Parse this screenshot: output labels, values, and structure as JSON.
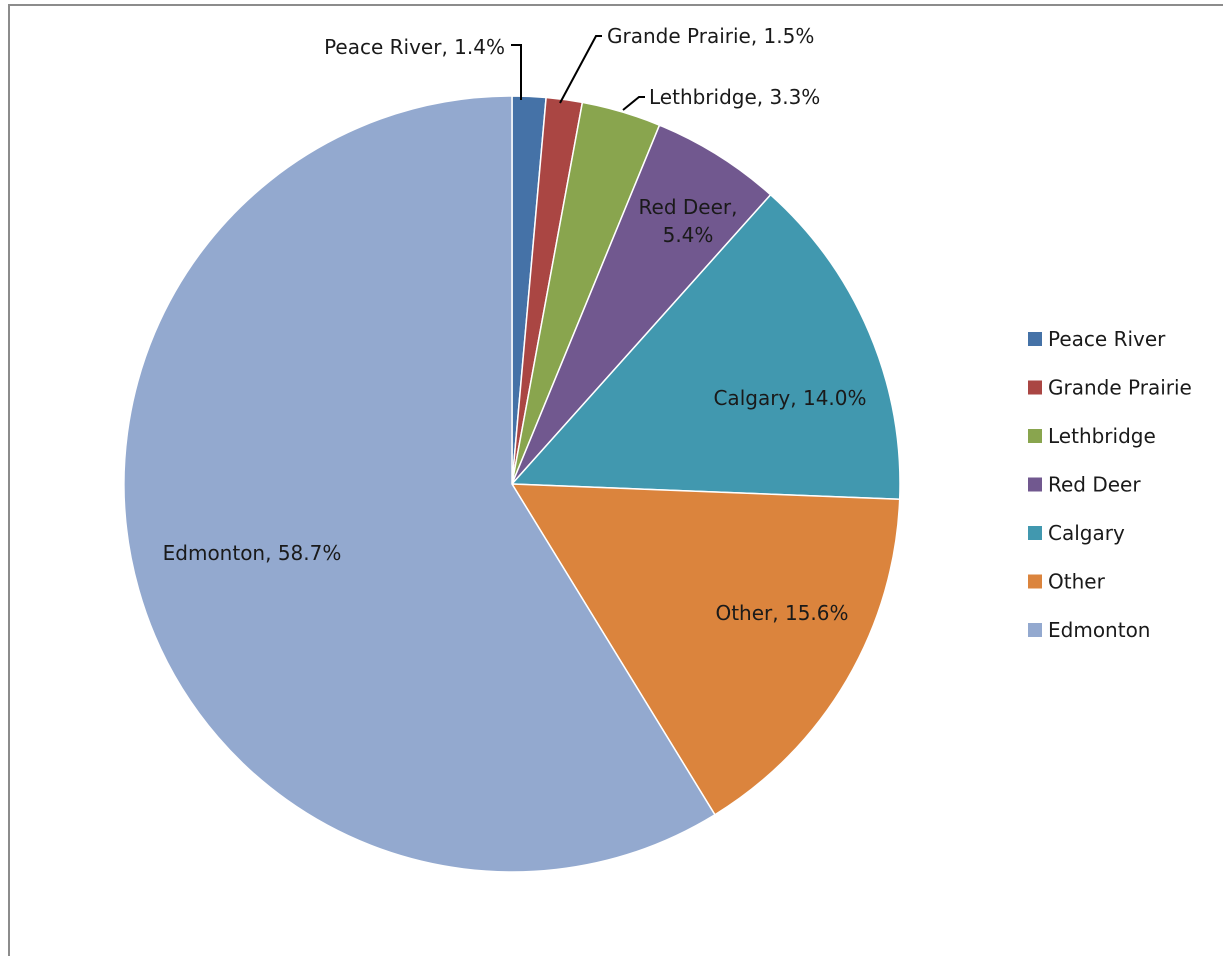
{
  "chart_data": {
    "type": "pie",
    "title": "",
    "legend_position": "right",
    "slices": [
      {
        "name": "Peace River",
        "value": 1.4,
        "label": "Peace River, 1.4%",
        "color": "#4572A7"
      },
      {
        "name": "Grande Prairie",
        "value": 1.5,
        "label": "Grande Prairie, 1.5%",
        "color": "#AA4643"
      },
      {
        "name": "Lethbridge",
        "value": 3.3,
        "label": "Lethbridge, 3.3%",
        "color": "#89A54E"
      },
      {
        "name": "Red Deer",
        "value": 5.4,
        "label": "Red Deer,\n5.4%",
        "color": "#71588F"
      },
      {
        "name": "Calgary",
        "value": 14.0,
        "label": "Calgary, 14.0%",
        "color": "#4198AF"
      },
      {
        "name": "Other",
        "value": 15.6,
        "label": "Other, 15.6%",
        "color": "#DB843D"
      },
      {
        "name": "Edmonton",
        "value": 58.7,
        "label": "Edmonton, 58.7%",
        "color": "#93A9CF"
      }
    ]
  }
}
